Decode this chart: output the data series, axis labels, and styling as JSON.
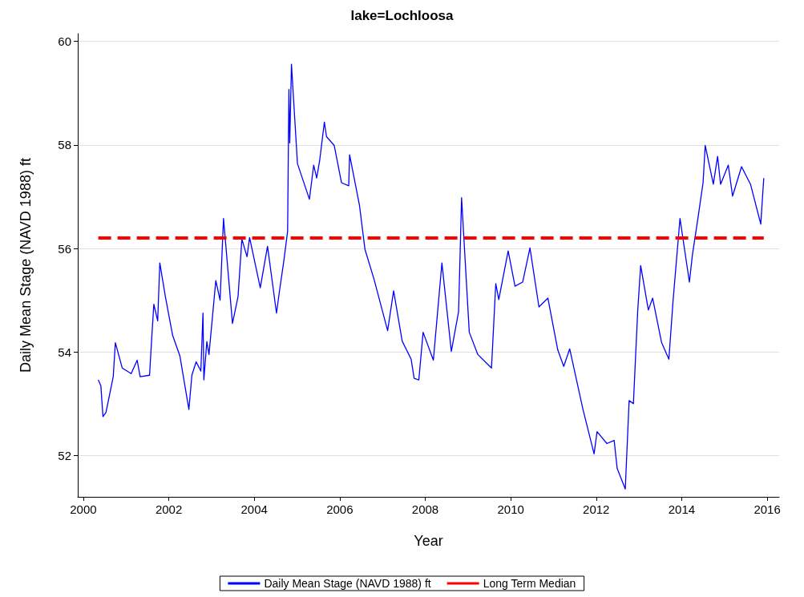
{
  "chart_data": {
    "type": "line",
    "title": "lake=Lochloosa",
    "xlabel": "Year",
    "ylabel": "Daily Mean Stage (NAVD 1988) ft",
    "xlim": [
      1999.87,
      2016.28
    ],
    "xticks": [
      2000,
      2002,
      2004,
      2006,
      2008,
      2010,
      2012,
      2014,
      2016
    ],
    "ylim": [
      51.2,
      60.15
    ],
    "yticks": [
      52,
      54,
      56,
      58,
      60
    ],
    "grid": "y",
    "legend": "bottom",
    "marker": "none",
    "line_style": "solid",
    "series": [
      {
        "name": "Daily Mean Stage (NAVD 1988) ft",
        "color": "#0000ff",
        "x": [
          2000.35,
          2000.41,
          2000.46,
          2000.53,
          2000.7,
          2000.75,
          2000.91,
          2001.12,
          2001.26,
          2001.33,
          2001.55,
          2001.6,
          2001.65,
          2001.74,
          2001.79,
          2001.92,
          2002.09,
          2002.26,
          2002.47,
          2002.54,
          2002.64,
          2002.75,
          2002.8,
          2002.82,
          2002.89,
          2002.94,
          2003.1,
          2003.2,
          2003.28,
          2003.49,
          2003.62,
          2003.71,
          2003.83,
          2003.89,
          2004.14,
          2004.31,
          2004.52,
          2004.59,
          2004.69,
          2004.78,
          2004.81,
          2004.83,
          2004.87,
          2005.01,
          2005.29,
          2005.39,
          2005.46,
          2005.53,
          2005.64,
          2005.69,
          2005.87,
          2006.04,
          2006.21,
          2006.23,
          2006.46,
          2006.59,
          2006.8,
          2007.12,
          2007.26,
          2007.46,
          2007.67,
          2007.74,
          2007.85,
          2007.95,
          2008.19,
          2008.39,
          2008.61,
          2008.78,
          2008.85,
          2009.03,
          2009.23,
          2009.55,
          2009.65,
          2009.72,
          2009.94,
          2010.1,
          2010.28,
          2010.45,
          2010.66,
          2010.87,
          2011.1,
          2011.24,
          2011.38,
          2011.69,
          2011.95,
          2012.02,
          2012.25,
          2012.42,
          2012.49,
          2012.68,
          2012.77,
          2012.87,
          2012.97,
          2013.04,
          2013.22,
          2013.32,
          2013.53,
          2013.7,
          2013.8,
          2013.96,
          2014.18,
          2014.25,
          2014.39,
          2014.5,
          2014.55,
          2014.74,
          2014.84,
          2014.91,
          2015.09,
          2015.19,
          2015.4,
          2015.61,
          2015.85,
          2015.92
        ],
        "values": [
          53.46,
          53.35,
          52.75,
          52.83,
          53.52,
          54.18,
          53.69,
          53.58,
          53.84,
          53.52,
          53.55,
          54.26,
          54.92,
          54.6,
          55.72,
          55.07,
          54.32,
          53.92,
          52.89,
          53.55,
          53.81,
          53.63,
          54.75,
          53.46,
          54.2,
          53.95,
          55.38,
          55.0,
          56.58,
          54.55,
          55.07,
          56.18,
          55.84,
          56.21,
          55.24,
          56.04,
          54.75,
          55.18,
          55.75,
          56.33,
          59.07,
          58.04,
          59.56,
          57.64,
          56.95,
          57.61,
          57.36,
          57.7,
          58.44,
          58.16,
          57.99,
          57.27,
          57.21,
          57.81,
          56.84,
          55.98,
          55.41,
          54.41,
          55.18,
          54.21,
          53.86,
          53.49,
          53.46,
          54.38,
          53.84,
          55.72,
          54.01,
          54.78,
          56.98,
          54.38,
          53.95,
          53.69,
          55.32,
          55.01,
          55.95,
          55.27,
          55.35,
          56.01,
          54.87,
          55.04,
          54.04,
          53.72,
          54.06,
          52.89,
          52.03,
          52.46,
          52.23,
          52.29,
          51.75,
          51.35,
          53.06,
          53.0,
          54.78,
          55.67,
          54.81,
          55.04,
          54.18,
          53.86,
          55.01,
          56.58,
          55.35,
          55.87,
          56.64,
          57.27,
          57.99,
          57.24,
          57.78,
          57.24,
          57.61,
          57.01,
          57.58,
          57.24,
          56.47,
          57.36
        ]
      }
    ],
    "ref_lines": [
      {
        "axis": "y",
        "value": 56.2,
        "label": "Long Term Median",
        "color": "#ff0000",
        "line_style": "dashed"
      }
    ]
  }
}
